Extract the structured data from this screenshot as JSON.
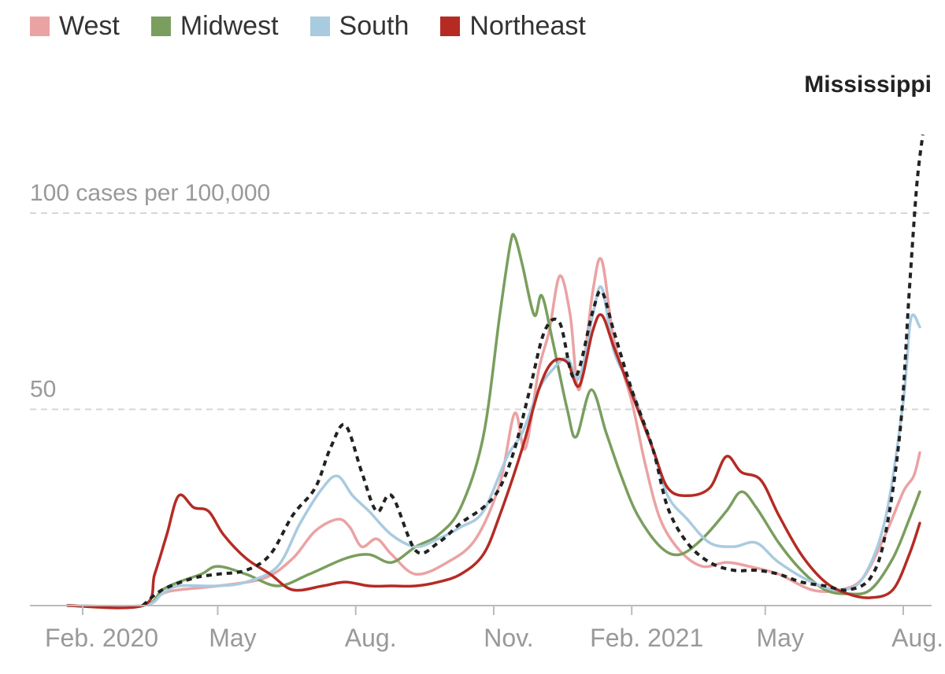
{
  "chart_data": {
    "type": "line",
    "title": "",
    "xlabel": "",
    "ylabel": "",
    "ylim": [
      0,
      120
    ],
    "y_ticks": [
      {
        "value": 100,
        "label": "100 cases per 100,000"
      },
      {
        "value": 50,
        "label": "50"
      }
    ],
    "x_ticks": [
      {
        "date": "2020-02-01",
        "label": "Feb. 2020"
      },
      {
        "date": "2020-05-01",
        "label": "May"
      },
      {
        "date": "2020-08-01",
        "label": "Aug."
      },
      {
        "date": "2020-11-01",
        "label": "Nov."
      },
      {
        "date": "2021-02-01",
        "label": "Feb. 2021"
      },
      {
        "date": "2021-05-01",
        "label": "May"
      },
      {
        "date": "2021-08-01",
        "label": "Aug."
      }
    ],
    "grid": true,
    "legend_position": "top-left",
    "series": [
      {
        "name": "West",
        "color": "#eba2a3",
        "style": "solid",
        "points": [
          [
            "2020-01-22",
            0
          ],
          [
            "2020-03-12",
            0
          ],
          [
            "2020-03-25",
            3
          ],
          [
            "2020-04-05",
            4
          ],
          [
            "2020-05-01",
            5
          ],
          [
            "2020-06-01",
            7
          ],
          [
            "2020-06-20",
            12
          ],
          [
            "2020-07-05",
            19
          ],
          [
            "2020-07-20",
            22
          ],
          [
            "2020-07-28",
            20
          ],
          [
            "2020-08-05",
            15
          ],
          [
            "2020-08-15",
            17
          ],
          [
            "2020-08-25",
            13
          ],
          [
            "2020-09-10",
            8
          ],
          [
            "2020-10-01",
            11
          ],
          [
            "2020-10-20",
            17
          ],
          [
            "2020-11-05",
            31
          ],
          [
            "2020-11-15",
            49
          ],
          [
            "2020-11-22",
            40
          ],
          [
            "2020-12-01",
            60
          ],
          [
            "2020-12-08",
            70
          ],
          [
            "2020-12-15",
            84
          ],
          [
            "2020-12-22",
            74
          ],
          [
            "2020-12-28",
            55
          ],
          [
            "2021-01-06",
            80
          ],
          [
            "2021-01-12",
            88
          ],
          [
            "2021-01-20",
            68
          ],
          [
            "2021-02-01",
            52
          ],
          [
            "2021-02-10",
            36
          ],
          [
            "2021-02-20",
            22
          ],
          [
            "2021-03-05",
            14
          ],
          [
            "2021-03-20",
            10
          ],
          [
            "2021-04-05",
            11
          ],
          [
            "2021-04-20",
            10
          ],
          [
            "2021-05-10",
            8
          ],
          [
            "2021-06-01",
            4
          ],
          [
            "2021-06-20",
            4
          ],
          [
            "2021-07-05",
            7
          ],
          [
            "2021-07-20",
            18
          ],
          [
            "2021-08-01",
            29
          ],
          [
            "2021-08-08",
            33
          ],
          [
            "2021-08-12",
            39
          ]
        ]
      },
      {
        "name": "Midwest",
        "color": "#7a9e5e",
        "style": "solid",
        "points": [
          [
            "2020-01-22",
            0
          ],
          [
            "2020-03-12",
            0
          ],
          [
            "2020-03-25",
            4
          ],
          [
            "2020-04-05",
            6
          ],
          [
            "2020-04-20",
            8
          ],
          [
            "2020-05-01",
            10
          ],
          [
            "2020-05-20",
            8
          ],
          [
            "2020-06-10",
            5
          ],
          [
            "2020-07-01",
            8
          ],
          [
            "2020-07-25",
            12
          ],
          [
            "2020-08-10",
            13
          ],
          [
            "2020-08-25",
            11
          ],
          [
            "2020-09-10",
            15
          ],
          [
            "2020-09-25",
            18
          ],
          [
            "2020-10-10",
            25
          ],
          [
            "2020-10-25",
            43
          ],
          [
            "2020-11-05",
            74
          ],
          [
            "2020-11-12",
            92
          ],
          [
            "2020-11-15",
            94
          ],
          [
            "2020-11-20",
            87
          ],
          [
            "2020-11-28",
            74
          ],
          [
            "2020-12-03",
            79
          ],
          [
            "2020-12-10",
            68
          ],
          [
            "2020-12-20",
            50
          ],
          [
            "2020-12-26",
            43
          ],
          [
            "2021-01-05",
            55
          ],
          [
            "2021-01-15",
            44
          ],
          [
            "2021-01-25",
            33
          ],
          [
            "2021-02-05",
            23
          ],
          [
            "2021-02-20",
            15
          ],
          [
            "2021-03-05",
            13
          ],
          [
            "2021-03-20",
            17
          ],
          [
            "2021-04-05",
            24
          ],
          [
            "2021-04-15",
            29
          ],
          [
            "2021-04-25",
            25
          ],
          [
            "2021-05-10",
            16
          ],
          [
            "2021-05-25",
            9
          ],
          [
            "2021-06-10",
            4
          ],
          [
            "2021-06-25",
            3
          ],
          [
            "2021-07-10",
            4
          ],
          [
            "2021-07-25",
            12
          ],
          [
            "2021-08-05",
            22
          ],
          [
            "2021-08-12",
            29
          ]
        ]
      },
      {
        "name": "South",
        "color": "#a9cbe0",
        "style": "solid",
        "points": [
          [
            "2020-01-22",
            0
          ],
          [
            "2020-03-12",
            0
          ],
          [
            "2020-03-25",
            3
          ],
          [
            "2020-04-05",
            5
          ],
          [
            "2020-05-01",
            5
          ],
          [
            "2020-05-20",
            6
          ],
          [
            "2020-06-10",
            10
          ],
          [
            "2020-06-25",
            21
          ],
          [
            "2020-07-10",
            30
          ],
          [
            "2020-07-20",
            33
          ],
          [
            "2020-07-30",
            28
          ],
          [
            "2020-08-10",
            24
          ],
          [
            "2020-08-25",
            18
          ],
          [
            "2020-09-10",
            15
          ],
          [
            "2020-09-25",
            17
          ],
          [
            "2020-10-10",
            20
          ],
          [
            "2020-10-25",
            24
          ],
          [
            "2020-11-10",
            38
          ],
          [
            "2020-11-20",
            44
          ],
          [
            "2020-12-01",
            55
          ],
          [
            "2020-12-10",
            60
          ],
          [
            "2020-12-20",
            63
          ],
          [
            "2020-12-28",
            58
          ],
          [
            "2021-01-06",
            74
          ],
          [
            "2021-01-12",
            81
          ],
          [
            "2021-01-20",
            65
          ],
          [
            "2021-02-01",
            55
          ],
          [
            "2021-02-15",
            40
          ],
          [
            "2021-02-25",
            28
          ],
          [
            "2021-03-10",
            22
          ],
          [
            "2021-03-25",
            16
          ],
          [
            "2021-04-10",
            15
          ],
          [
            "2021-04-25",
            16
          ],
          [
            "2021-05-10",
            11
          ],
          [
            "2021-06-01",
            6
          ],
          [
            "2021-06-20",
            4
          ],
          [
            "2021-07-05",
            7
          ],
          [
            "2021-07-20",
            22
          ],
          [
            "2021-08-01",
            52
          ],
          [
            "2021-08-06",
            73
          ],
          [
            "2021-08-12",
            71
          ]
        ]
      },
      {
        "name": "Northeast",
        "color": "#b52b24",
        "style": "solid",
        "points": [
          [
            "2020-01-22",
            0
          ],
          [
            "2020-03-12",
            0
          ],
          [
            "2020-03-20",
            8
          ],
          [
            "2020-03-28",
            18
          ],
          [
            "2020-04-05",
            28
          ],
          [
            "2020-04-15",
            25
          ],
          [
            "2020-04-25",
            24
          ],
          [
            "2020-05-05",
            18
          ],
          [
            "2020-05-20",
            12
          ],
          [
            "2020-06-05",
            8
          ],
          [
            "2020-06-20",
            4
          ],
          [
            "2020-07-10",
            5
          ],
          [
            "2020-07-25",
            6
          ],
          [
            "2020-08-10",
            5
          ],
          [
            "2020-08-25",
            5
          ],
          [
            "2020-09-10",
            5
          ],
          [
            "2020-09-25",
            6
          ],
          [
            "2020-10-10",
            8
          ],
          [
            "2020-10-25",
            13
          ],
          [
            "2020-11-05",
            23
          ],
          [
            "2020-11-20",
            40
          ],
          [
            "2020-12-01",
            55
          ],
          [
            "2020-12-10",
            62
          ],
          [
            "2020-12-20",
            62
          ],
          [
            "2020-12-28",
            56
          ],
          [
            "2021-01-06",
            70
          ],
          [
            "2021-01-12",
            74
          ],
          [
            "2021-01-20",
            66
          ],
          [
            "2021-02-01",
            54
          ],
          [
            "2021-02-15",
            40
          ],
          [
            "2021-02-25",
            30
          ],
          [
            "2021-03-10",
            28
          ],
          [
            "2021-03-25",
            30
          ],
          [
            "2021-04-05",
            38
          ],
          [
            "2021-04-15",
            34
          ],
          [
            "2021-04-28",
            32
          ],
          [
            "2021-05-10",
            23
          ],
          [
            "2021-05-25",
            13
          ],
          [
            "2021-06-10",
            6
          ],
          [
            "2021-06-25",
            3
          ],
          [
            "2021-07-10",
            2
          ],
          [
            "2021-07-25",
            4
          ],
          [
            "2021-08-05",
            13
          ],
          [
            "2021-08-12",
            21
          ]
        ]
      },
      {
        "name": "Mississippi",
        "color": "#222222",
        "style": "dashed",
        "points": [
          [
            "2020-03-12",
            0
          ],
          [
            "2020-03-25",
            4
          ],
          [
            "2020-04-15",
            7
          ],
          [
            "2020-05-01",
            8
          ],
          [
            "2020-05-20",
            9
          ],
          [
            "2020-06-05",
            13
          ],
          [
            "2020-06-20",
            23
          ],
          [
            "2020-07-05",
            30
          ],
          [
            "2020-07-15",
            40
          ],
          [
            "2020-07-25",
            46
          ],
          [
            "2020-08-05",
            34
          ],
          [
            "2020-08-15",
            24
          ],
          [
            "2020-08-25",
            28
          ],
          [
            "2020-09-10",
            14
          ],
          [
            "2020-09-25",
            16
          ],
          [
            "2020-10-10",
            21
          ],
          [
            "2020-10-25",
            25
          ],
          [
            "2020-11-05",
            30
          ],
          [
            "2020-11-15",
            40
          ],
          [
            "2020-11-25",
            55
          ],
          [
            "2020-12-05",
            70
          ],
          [
            "2020-12-15",
            72
          ],
          [
            "2020-12-25",
            58
          ],
          [
            "2021-01-06",
            75
          ],
          [
            "2021-01-12",
            80
          ],
          [
            "2021-01-20",
            70
          ],
          [
            "2021-02-01",
            55
          ],
          [
            "2021-02-15",
            40
          ],
          [
            "2021-02-25",
            25
          ],
          [
            "2021-03-10",
            16
          ],
          [
            "2021-03-25",
            11
          ],
          [
            "2021-04-10",
            9
          ],
          [
            "2021-04-25",
            9
          ],
          [
            "2021-05-10",
            8
          ],
          [
            "2021-05-25",
            6
          ],
          [
            "2021-06-10",
            5
          ],
          [
            "2021-06-25",
            4
          ],
          [
            "2021-07-10",
            7
          ],
          [
            "2021-07-20",
            18
          ],
          [
            "2021-07-30",
            45
          ],
          [
            "2021-08-05",
            80
          ],
          [
            "2021-08-10",
            107
          ],
          [
            "2021-08-14",
            120
          ]
        ]
      }
    ],
    "annotations": [
      {
        "text": "Mississippi",
        "series": "Mississippi"
      }
    ]
  }
}
